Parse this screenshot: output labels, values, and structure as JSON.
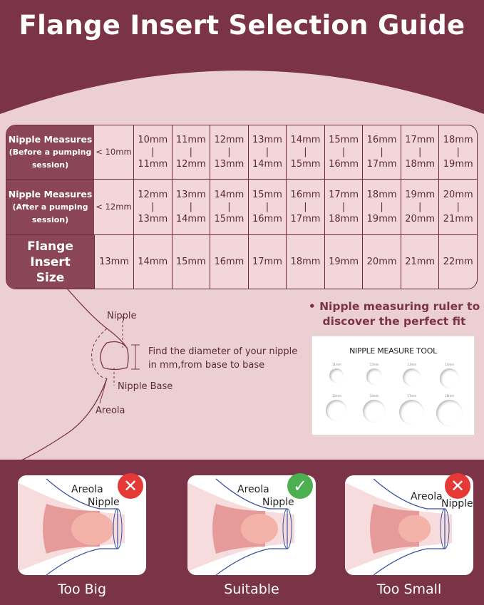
{
  "title": "Flange Insert Selection Guide",
  "table": {
    "row_labels": [
      {
        "main": "Nipple Measures",
        "sub": "(Before a pumping session)"
      },
      {
        "main": "Nipple Measures",
        "sub": "(After a pumping session)"
      },
      {
        "main": "Flange Insert Size",
        "sub": ""
      }
    ],
    "before": [
      "< 10mm",
      [
        "10mm",
        "11mm"
      ],
      [
        "11mm",
        "12mm"
      ],
      [
        "12mm",
        "13mm"
      ],
      [
        "13mm",
        "14mm"
      ],
      [
        "14mm",
        "15mm"
      ],
      [
        "15mm",
        "16mm"
      ],
      [
        "16mm",
        "17mm"
      ],
      [
        "17mm",
        "18mm"
      ],
      [
        "18mm",
        "19mm"
      ]
    ],
    "after": [
      "< 12mm",
      [
        "12mm",
        "13mm"
      ],
      [
        "13mm",
        "14mm"
      ],
      [
        "14mm",
        "15mm"
      ],
      [
        "15mm",
        "16mm"
      ],
      [
        "16mm",
        "17mm"
      ],
      [
        "17mm",
        "18mm"
      ],
      [
        "18mm",
        "19mm"
      ],
      [
        "19mm",
        "20mm"
      ],
      [
        "20mm",
        "21mm"
      ]
    ],
    "flange": [
      "13mm",
      "14mm",
      "15mm",
      "16mm",
      "17mm",
      "18mm",
      "19mm",
      "20mm",
      "21mm",
      "22mm"
    ]
  },
  "diagram": {
    "nipple": "Nipple",
    "instruction": "Find the diameter of your nipple in mm,from base to base",
    "nipple_base": "Nipple Base",
    "areola": "Areola"
  },
  "ruler": {
    "note": "Nipple measuring ruler to discover the perfect fit",
    "tool_title": "NIPPLE MEASURE TOOL",
    "sizes": [
      "11mm",
      "12mm",
      "13mm",
      "14mm",
      "15mm",
      "16mm",
      "17mm",
      "18mm"
    ]
  },
  "fits": [
    {
      "label": "Too Big",
      "areola": "Areola",
      "nipple": "Nipple",
      "status": "wrong",
      "color": "#e53935"
    },
    {
      "label": "Suitable",
      "areola": "Areola",
      "nipple": "Nipple",
      "status": "correct",
      "color": "#4caf50"
    },
    {
      "label": "Too Small",
      "areola": "Areola",
      "nipple": "Nipple",
      "status": "wrong",
      "color": "#e53935"
    }
  ],
  "colors": {
    "brand": "#7b3347",
    "background": "#eccfd3"
  }
}
